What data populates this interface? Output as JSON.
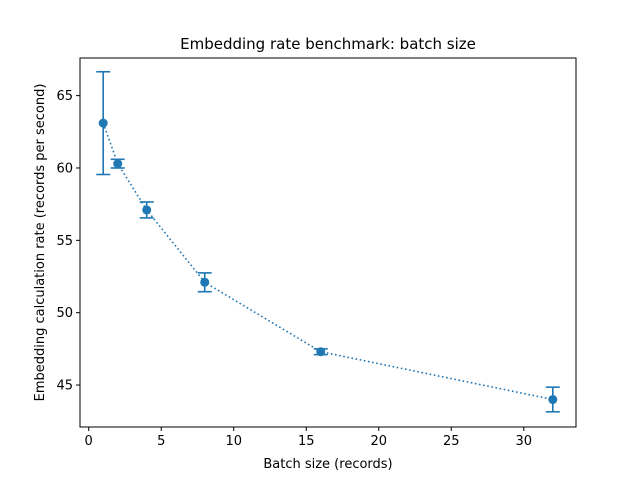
{
  "chart_data": {
    "type": "scatter",
    "title": "Embedding rate benchmark: batch size",
    "xlabel": "Batch size (records)",
    "ylabel": "Embedding calculation rate (records per second)",
    "xlim": [
      -0.6,
      33.6
    ],
    "ylim": [
      42.1,
      67.6
    ],
    "xticks": [
      0,
      5,
      10,
      15,
      20,
      25,
      30
    ],
    "yticks": [
      45,
      50,
      55,
      60,
      65
    ],
    "grid": false,
    "series_color": "#1f77b4",
    "line_style": "dotted",
    "x": [
      1,
      2,
      4,
      8,
      16,
      32
    ],
    "y": [
      63.1,
      60.3,
      57.1,
      52.1,
      47.3,
      44.0
    ],
    "yerr": [
      3.55,
      0.3,
      0.55,
      0.65,
      0.2,
      0.85
    ]
  }
}
